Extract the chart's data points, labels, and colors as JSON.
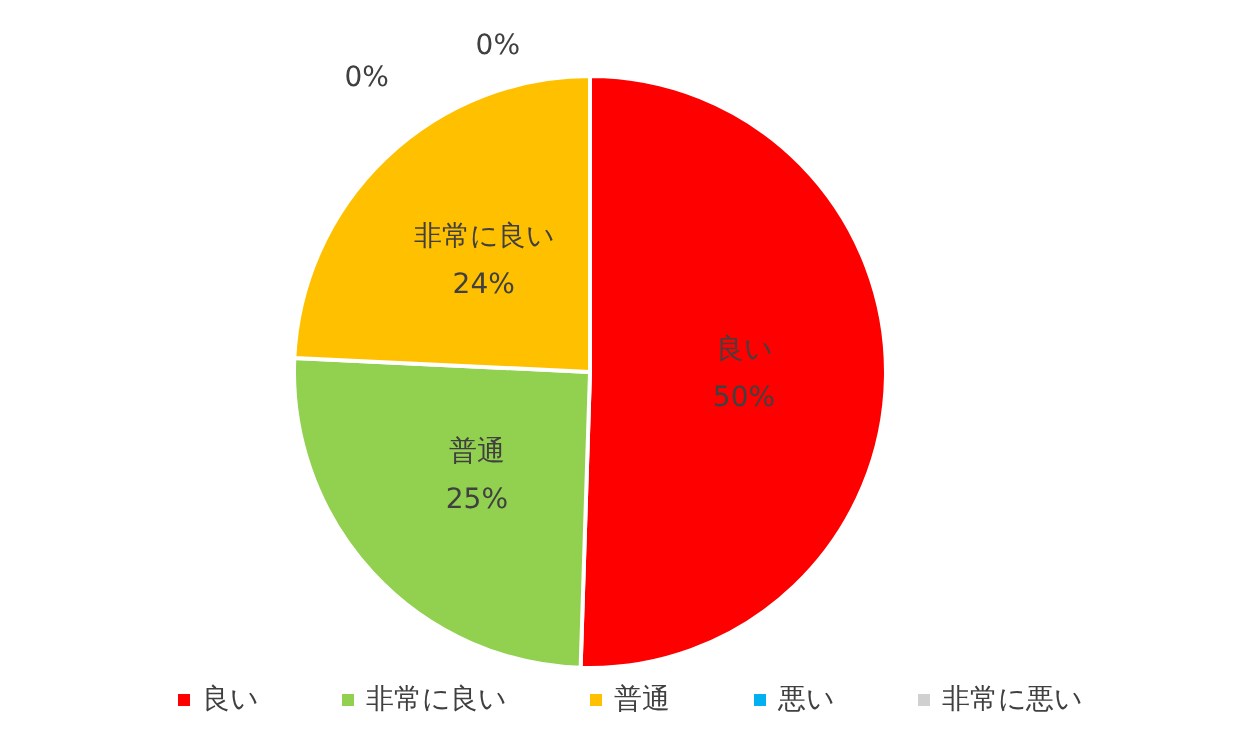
{
  "chart_data": {
    "type": "pie",
    "categories": [
      "良い",
      "非常に良い",
      "普通",
      "悪い",
      "非常に悪い"
    ],
    "values": [
      50,
      25,
      24,
      0,
      0
    ],
    "colors": [
      "#ff0000",
      "#92d050",
      "#ffc000",
      "#00b0f0",
      "#d0d0d0"
    ],
    "value_labels": [
      "良い\n\n50%",
      "普通\n\n25%",
      "非常に良い\n\n24%",
      "0%",
      "0%"
    ],
    "legend": "bottom"
  }
}
